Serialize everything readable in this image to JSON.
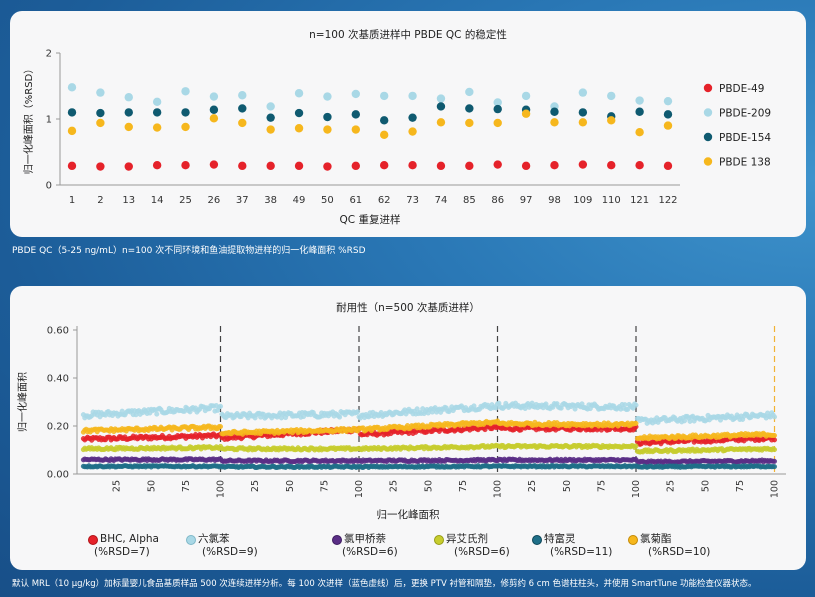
{
  "colors": {
    "pbde49": "#e5222a",
    "pbde209": "#a9d8e6",
    "pbde154": "#0f5a70",
    "pbde138": "#f6b71d",
    "bhc": "#e5222a",
    "hexa": "#a9d8e6",
    "methoxychlor": "#5a2e86",
    "isodrin": "#c7cd2e",
    "tefluthrin": "#1f6f88",
    "fenpropathrin": "#f6b71d",
    "grey_line": "#444444",
    "orange_line": "#f2b233"
  },
  "chart_data": [
    {
      "type": "scatter",
      "title": "n=100 次基质进样中 PBDE QC 的稳定性",
      "xlabel": "QC 重复进样",
      "ylabel": "归一化峰面积（%RSD）",
      "ylim": [
        0,
        2
      ],
      "yticks": [
        "0",
        "1",
        "2"
      ],
      "categories": [
        "1",
        "2",
        "13",
        "14",
        "25",
        "26",
        "37",
        "38",
        "49",
        "50",
        "61",
        "62",
        "73",
        "74",
        "85",
        "86",
        "97",
        "98",
        "109",
        "110",
        "121",
        "122"
      ],
      "series": [
        {
          "name": "PBDE-49",
          "color_key": "pbde49",
          "values": [
            0.29,
            0.28,
            0.28,
            0.3,
            0.3,
            0.31,
            0.29,
            0.29,
            0.29,
            0.28,
            0.29,
            0.3,
            0.3,
            0.29,
            0.29,
            0.31,
            0.29,
            0.3,
            0.31,
            0.3,
            0.3,
            0.29
          ]
        },
        {
          "name": "PBDE-209",
          "color_key": "pbde209",
          "values": [
            1.48,
            1.4,
            1.33,
            1.26,
            1.42,
            1.34,
            1.36,
            1.19,
            1.39,
            1.34,
            1.38,
            1.35,
            1.35,
            1.31,
            1.41,
            1.25,
            1.35,
            1.19,
            1.4,
            1.35,
            1.28,
            1.27
          ]
        },
        {
          "name": "PBDE-154",
          "color_key": "pbde154",
          "values": [
            1.1,
            1.09,
            1.1,
            1.1,
            1.1,
            1.14,
            1.16,
            1.02,
            1.09,
            1.03,
            1.07,
            0.98,
            1.02,
            1.19,
            1.16,
            1.15,
            1.14,
            1.11,
            1.1,
            1.04,
            1.11,
            1.07
          ]
        },
        {
          "name": "PBDE 138",
          "color_key": "pbde138",
          "values": [
            0.82,
            0.94,
            0.88,
            0.87,
            0.88,
            1.01,
            0.94,
            0.84,
            0.86,
            0.84,
            0.84,
            0.76,
            0.81,
            0.95,
            0.94,
            0.94,
            1.08,
            0.95,
            0.95,
            0.98,
            0.8,
            0.9
          ]
        }
      ]
    },
    {
      "type": "scatter",
      "title": "耐用性（n=500 次基质进样）",
      "xlabel": "归一化峰面积",
      "ylabel": "归一化峰面积",
      "ylim": [
        0,
        0.6
      ],
      "xlim": [
        0,
        502
      ],
      "yticks": [
        "0.00",
        "0.20",
        "0.40",
        "0.60"
      ],
      "xticks": [
        "25",
        "50",
        "75",
        "100",
        "25",
        "50",
        "75",
        "100",
        "25",
        "50",
        "75",
        "100",
        "25",
        "50",
        "75",
        "100",
        "25",
        "50",
        "75",
        "100"
      ],
      "segment_size": 100,
      "segments": 5,
      "column_change_lines_at": [
        100,
        200,
        300,
        400
      ],
      "final_line_at": 500,
      "series": [
        {
          "name": "BHC, Alpha",
          "rsd": "(%RSD=7)",
          "color_key": "bhc",
          "segment_levels": [
            [
              0.145,
              0.16
            ],
            [
              0.15,
              0.185
            ],
            [
              0.165,
              0.195
            ],
            [
              0.19,
              0.19
            ],
            [
              0.13,
              0.15
            ]
          ],
          "jitter": 0.008
        },
        {
          "name": "六氯苯",
          "rsd": "(%RSD=9)",
          "color_key": "hexa",
          "segment_levels": [
            [
              0.245,
              0.275
            ],
            [
              0.24,
              0.25
            ],
            [
              0.245,
              0.285
            ],
            [
              0.285,
              0.28
            ],
            [
              0.22,
              0.245
            ]
          ],
          "jitter": 0.012
        },
        {
          "name": "氯甲桥萘",
          "rsd": "(%RSD=6)",
          "color_key": "methoxychlor",
          "segment_levels": [
            [
              0.06,
              0.06
            ],
            [
              0.055,
              0.055
            ],
            [
              0.055,
              0.058
            ],
            [
              0.058,
              0.058
            ],
            [
              0.05,
              0.055
            ]
          ],
          "jitter": 0.004
        },
        {
          "name": "异艾氏剂",
          "rsd": "(%RSD=6)",
          "color_key": "isodrin",
          "segment_levels": [
            [
              0.105,
              0.11
            ],
            [
              0.105,
              0.105
            ],
            [
              0.105,
              0.115
            ],
            [
              0.115,
              0.115
            ],
            [
              0.095,
              0.105
            ]
          ],
          "jitter": 0.005
        },
        {
          "name": "特富灵",
          "rsd": "(%RSD=11)",
          "color_key": "tefluthrin",
          "segment_levels": [
            [
              0.032,
              0.032
            ],
            [
              0.03,
              0.03
            ],
            [
              0.03,
              0.032
            ],
            [
              0.032,
              0.032
            ],
            [
              0.03,
              0.032
            ]
          ],
          "jitter": 0.003
        },
        {
          "name": "氯菊酯",
          "rsd": "(%RSD=10)",
          "color_key": "fenpropathrin",
          "segment_levels": [
            [
              0.18,
              0.195
            ],
            [
              0.17,
              0.185
            ],
            [
              0.185,
              0.215
            ],
            [
              0.21,
              0.205
            ],
            [
              0.15,
              0.165
            ]
          ],
          "jitter": 0.007
        }
      ]
    }
  ],
  "captions": {
    "caption1": "PBDE QC（5-25 ng/mL）n=100 次不同环境和鱼油提取物进样的归一化峰面积 %RSD",
    "caption2": "默认 MRL（10 μg/kg）加标量婴儿食品基质样品 500 次连续进样分析。每 100 次进样（蓝色虚线）后，更换 PTV 衬管和隔垫，修剪约 6 cm 色谱柱柱头，并使用 SmartTune 功能检查仪器状态。"
  }
}
